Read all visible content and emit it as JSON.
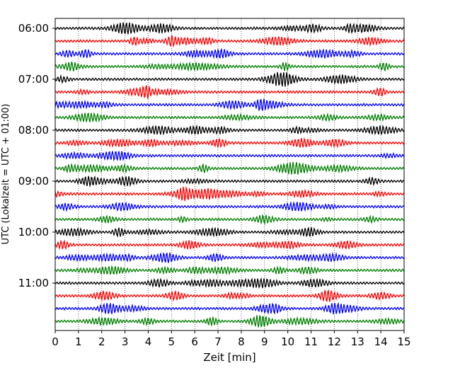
{
  "chart_data": {
    "type": "line",
    "title": "",
    "xlabel": "Zeit  [min]",
    "ylabel": "UTC (Lokalzeit = UTC + 01:00)",
    "xlim": [
      0,
      15
    ],
    "x_ticks": [
      0,
      1,
      2,
      3,
      4,
      5,
      6,
      7,
      8,
      9,
      10,
      11,
      12,
      13,
      14,
      15
    ],
    "y_ticks": [
      {
        "label": "06:00",
        "trace_index": 0
      },
      {
        "label": "07:00",
        "trace_index": 4
      },
      {
        "label": "08:00",
        "trace_index": 8
      },
      {
        "label": "09:00",
        "trace_index": 12
      },
      {
        "label": "10:00",
        "trace_index": 16
      },
      {
        "label": "11:00",
        "trace_index": 20
      }
    ],
    "trace_count": 24,
    "trace_interval_min": 15,
    "trace_colors": [
      "#000000",
      "#ff0000",
      "#0000ff",
      "#007f00"
    ],
    "grid": {
      "x": true,
      "y": false,
      "style": "dotted"
    }
  }
}
